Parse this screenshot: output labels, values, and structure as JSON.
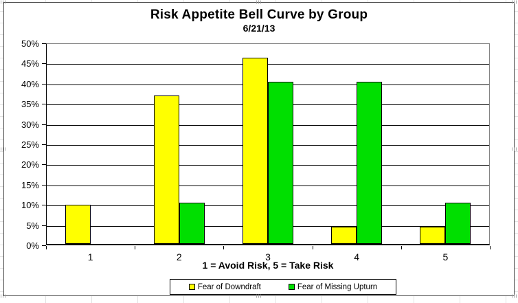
{
  "chart_data": {
    "type": "bar",
    "title": "Risk Appetite Bell Curve by Group",
    "subtitle": "6/21/13",
    "xlabel": "1 = Avoid Risk, 5 = Take Risk",
    "categories": [
      "1",
      "2",
      "3",
      "4",
      "5"
    ],
    "series": [
      {
        "name": "Fear of Downdraft",
        "color": "#FFFF00",
        "values": [
          9.5,
          36.5,
          46,
          4,
          4
        ]
      },
      {
        "name": "Fear of Missing Upturn",
        "color": "#00DF00",
        "values": [
          0,
          10,
          40,
          40,
          10
        ]
      }
    ],
    "ylim": [
      0,
      50
    ],
    "ytick_step": 5,
    "ytick_labels": [
      "0%",
      "5%",
      "10%",
      "15%",
      "20%",
      "25%",
      "30%",
      "35%",
      "40%",
      "45%",
      "50%"
    ],
    "grid": true,
    "legend_position": "bottom",
    "gridline_color": "#000000",
    "plot_border_color": "#848484"
  }
}
